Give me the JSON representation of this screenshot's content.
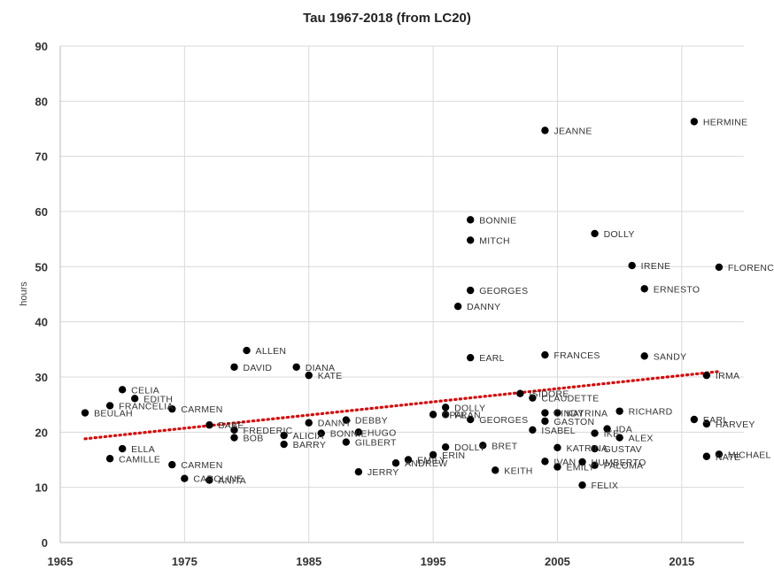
{
  "chart_data": {
    "type": "scatter",
    "title": "Tau 1967-2018 (from LC20)",
    "xlabel": "",
    "ylabel": "hours",
    "xlim": [
      1965,
      2020
    ],
    "ylim": [
      0,
      90
    ],
    "x_ticks": [
      1965,
      1975,
      1985,
      1995,
      2005,
      2015
    ],
    "y_ticks": [
      0,
      10,
      20,
      30,
      40,
      50,
      60,
      70,
      80,
      90
    ],
    "grid": "vertical and horizontal",
    "legend": "none",
    "series": [
      {
        "color": "#000000",
        "points": [
          {
            "x": 1967,
            "y": 23.5,
            "label": "BEULAH"
          },
          {
            "x": 1969,
            "y": 24.8,
            "label": "FRANCELIA"
          },
          {
            "x": 1969,
            "y": 15.2,
            "label": "CAMILLE"
          },
          {
            "x": 1970,
            "y": 27.7,
            "label": "CELIA"
          },
          {
            "x": 1970,
            "y": 17.0,
            "label": "ELLA"
          },
          {
            "x": 1971,
            "y": 26.1,
            "label": "EDITH"
          },
          {
            "x": 1974,
            "y": 24.2,
            "label": "CARMEN"
          },
          {
            "x": 1974,
            "y": 14.1,
            "label": "CARMEN"
          },
          {
            "x": 1975,
            "y": 11.6,
            "label": "CAROLINE"
          },
          {
            "x": 1977,
            "y": 21.3,
            "label": "BABE"
          },
          {
            "x": 1977,
            "y": 11.3,
            "label": "ANITA"
          },
          {
            "x": 1979,
            "y": 31.8,
            "label": "DAVID"
          },
          {
            "x": 1979,
            "y": 20.4,
            "label": "FREDERIC"
          },
          {
            "x": 1979,
            "y": 19.0,
            "label": "BOB"
          },
          {
            "x": 1980,
            "y": 34.8,
            "label": "ALLEN"
          },
          {
            "x": 1983,
            "y": 19.4,
            "label": "ALICIA"
          },
          {
            "x": 1983,
            "y": 17.8,
            "label": "BARRY"
          },
          {
            "x": 1984,
            "y": 31.8,
            "label": "DIANA"
          },
          {
            "x": 1985,
            "y": 30.3,
            "label": "KATE"
          },
          {
            "x": 1985,
            "y": 21.7,
            "label": "DANNY"
          },
          {
            "x": 1986,
            "y": 19.8,
            "label": "BONNIE"
          },
          {
            "x": 1988,
            "y": 22.2,
            "label": "DEBBY"
          },
          {
            "x": 1988,
            "y": 18.2,
            "label": "GILBERT"
          },
          {
            "x": 1989,
            "y": 20.0,
            "label": "HUGO"
          },
          {
            "x": 1989,
            "y": 12.8,
            "label": "JERRY"
          },
          {
            "x": 1992,
            "y": 14.4,
            "label": "ANDREW"
          },
          {
            "x": 1993,
            "y": 15.0,
            "label": "EMILY"
          },
          {
            "x": 1995,
            "y": 23.2,
            "label": "OPAL"
          },
          {
            "x": 1995,
            "y": 15.9,
            "label": "ERIN"
          },
          {
            "x": 1996,
            "y": 24.5,
            "label": "DOLLY"
          },
          {
            "x": 1996,
            "y": 23.2,
            "label": "FRAN"
          },
          {
            "x": 1996,
            "y": 17.3,
            "label": "DOLLY"
          },
          {
            "x": 1997,
            "y": 42.8,
            "label": "DANNY"
          },
          {
            "x": 1998,
            "y": 58.5,
            "label": "BONNIE"
          },
          {
            "x": 1998,
            "y": 54.8,
            "label": "MITCH"
          },
          {
            "x": 1998,
            "y": 45.7,
            "label": "GEORGES"
          },
          {
            "x": 1998,
            "y": 33.5,
            "label": "EARL"
          },
          {
            "x": 1998,
            "y": 22.3,
            "label": "GEORGES"
          },
          {
            "x": 1999,
            "y": 17.6,
            "label": "BRET"
          },
          {
            "x": 2000,
            "y": 13.1,
            "label": "KEITH"
          },
          {
            "x": 2002,
            "y": 27.0,
            "label": "ISIDORE"
          },
          {
            "x": 2003,
            "y": 26.2,
            "label": "CLAUDETTE"
          },
          {
            "x": 2003,
            "y": 20.4,
            "label": "ISABEL"
          },
          {
            "x": 2004,
            "y": 74.7,
            "label": "JEANNE"
          },
          {
            "x": 2004,
            "y": 34.0,
            "label": "FRANCES"
          },
          {
            "x": 2004,
            "y": 23.5,
            "label": "CINDY"
          },
          {
            "x": 2004,
            "y": 22.0,
            "label": "GASTON"
          },
          {
            "x": 2004,
            "y": 14.7,
            "label": "IVAN"
          },
          {
            "x": 2005,
            "y": 23.5,
            "label": "KATRINA"
          },
          {
            "x": 2005,
            "y": 17.2,
            "label": "KATRINA"
          },
          {
            "x": 2005,
            "y": 13.7,
            "label": "EMILY"
          },
          {
            "x": 2007,
            "y": 14.6,
            "label": "HUMBERTO"
          },
          {
            "x": 2007,
            "y": 10.4,
            "label": "FELIX"
          },
          {
            "x": 2008,
            "y": 56.0,
            "label": "DOLLY"
          },
          {
            "x": 2008,
            "y": 19.8,
            "label": "IKE"
          },
          {
            "x": 2008,
            "y": 17.0,
            "label": "GUSTAV"
          },
          {
            "x": 2008,
            "y": 14.0,
            "label": "PALOMA"
          },
          {
            "x": 2009,
            "y": 20.6,
            "label": "IDA"
          },
          {
            "x": 2010,
            "y": 23.8,
            "label": "RICHARD"
          },
          {
            "x": 2010,
            "y": 19.0,
            "label": "ALEX"
          },
          {
            "x": 2011,
            "y": 50.2,
            "label": "IRENE"
          },
          {
            "x": 2012,
            "y": 46.0,
            "label": "ERNESTO"
          },
          {
            "x": 2012,
            "y": 33.8,
            "label": "SANDY"
          },
          {
            "x": 2016,
            "y": 76.3,
            "label": "HERMINE"
          },
          {
            "x": 2016,
            "y": 22.3,
            "label": "EARL"
          },
          {
            "x": 2017,
            "y": 30.3,
            "label": "IRMA"
          },
          {
            "x": 2017,
            "y": 21.5,
            "label": "HARVEY"
          },
          {
            "x": 2017,
            "y": 15.6,
            "label": "NATE"
          },
          {
            "x": 2018,
            "y": 49.9,
            "label": "FLORENCE"
          },
          {
            "x": 2018,
            "y": 16.0,
            "label": "MICHAEL"
          }
        ]
      }
    ],
    "trendline": {
      "type": "linear",
      "style": "dotted",
      "color": "#e00000",
      "x": [
        1967,
        2018
      ],
      "y": [
        18.8,
        31.0
      ]
    }
  }
}
